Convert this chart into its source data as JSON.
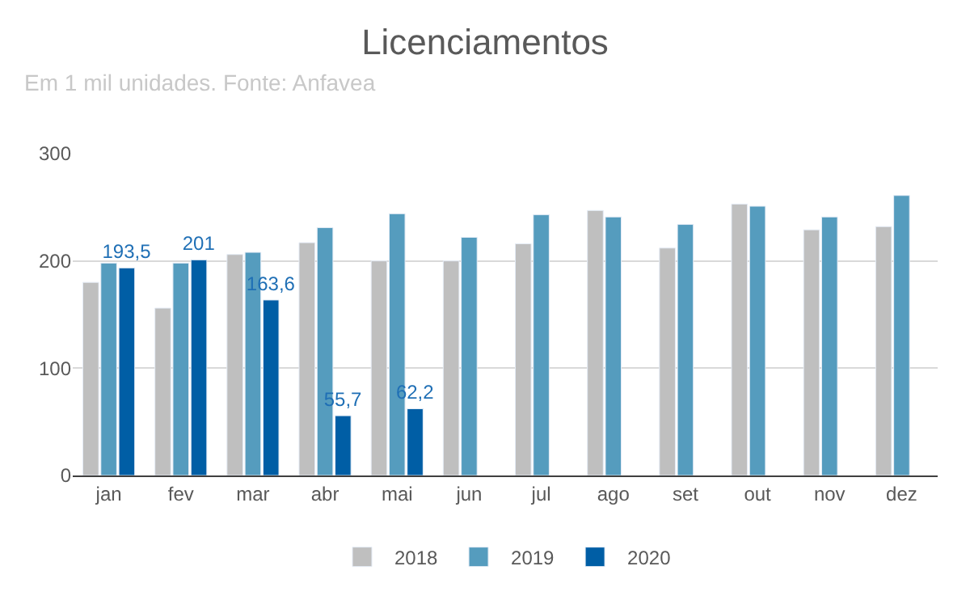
{
  "chart_data": {
    "type": "bar",
    "title": "Licenciamentos",
    "subtitle": "Em 1 mil unidades. Fonte: Anfavea",
    "categories": [
      "jan",
      "fev",
      "mar",
      "abr",
      "mai",
      "jun",
      "jul",
      "ago",
      "set",
      "out",
      "nov",
      "dez"
    ],
    "series": [
      {
        "name": "2018",
        "color": "#bfbfbf",
        "values": [
          180,
          156,
          206,
          217,
          200,
          200,
          216,
          247,
          212,
          253,
          229,
          232
        ]
      },
      {
        "name": "2019",
        "color": "#559cbe",
        "values": [
          198,
          198,
          208,
          231,
          244,
          222,
          243,
          241,
          234,
          251,
          241,
          261
        ]
      },
      {
        "name": "2020",
        "color": "#005ea5",
        "values": [
          193.5,
          201,
          163.6,
          55.7,
          62.2,
          null,
          null,
          null,
          null,
          null,
          null,
          null
        ],
        "value_labels": [
          "193,5",
          "201",
          "163,6",
          "55,7",
          "62,2",
          null,
          null,
          null,
          null,
          null,
          null,
          null
        ]
      }
    ],
    "ylim": [
      0,
      300
    ],
    "yticks": [
      0,
      100,
      200,
      300
    ],
    "grid": "y",
    "legend": "bottom"
  }
}
